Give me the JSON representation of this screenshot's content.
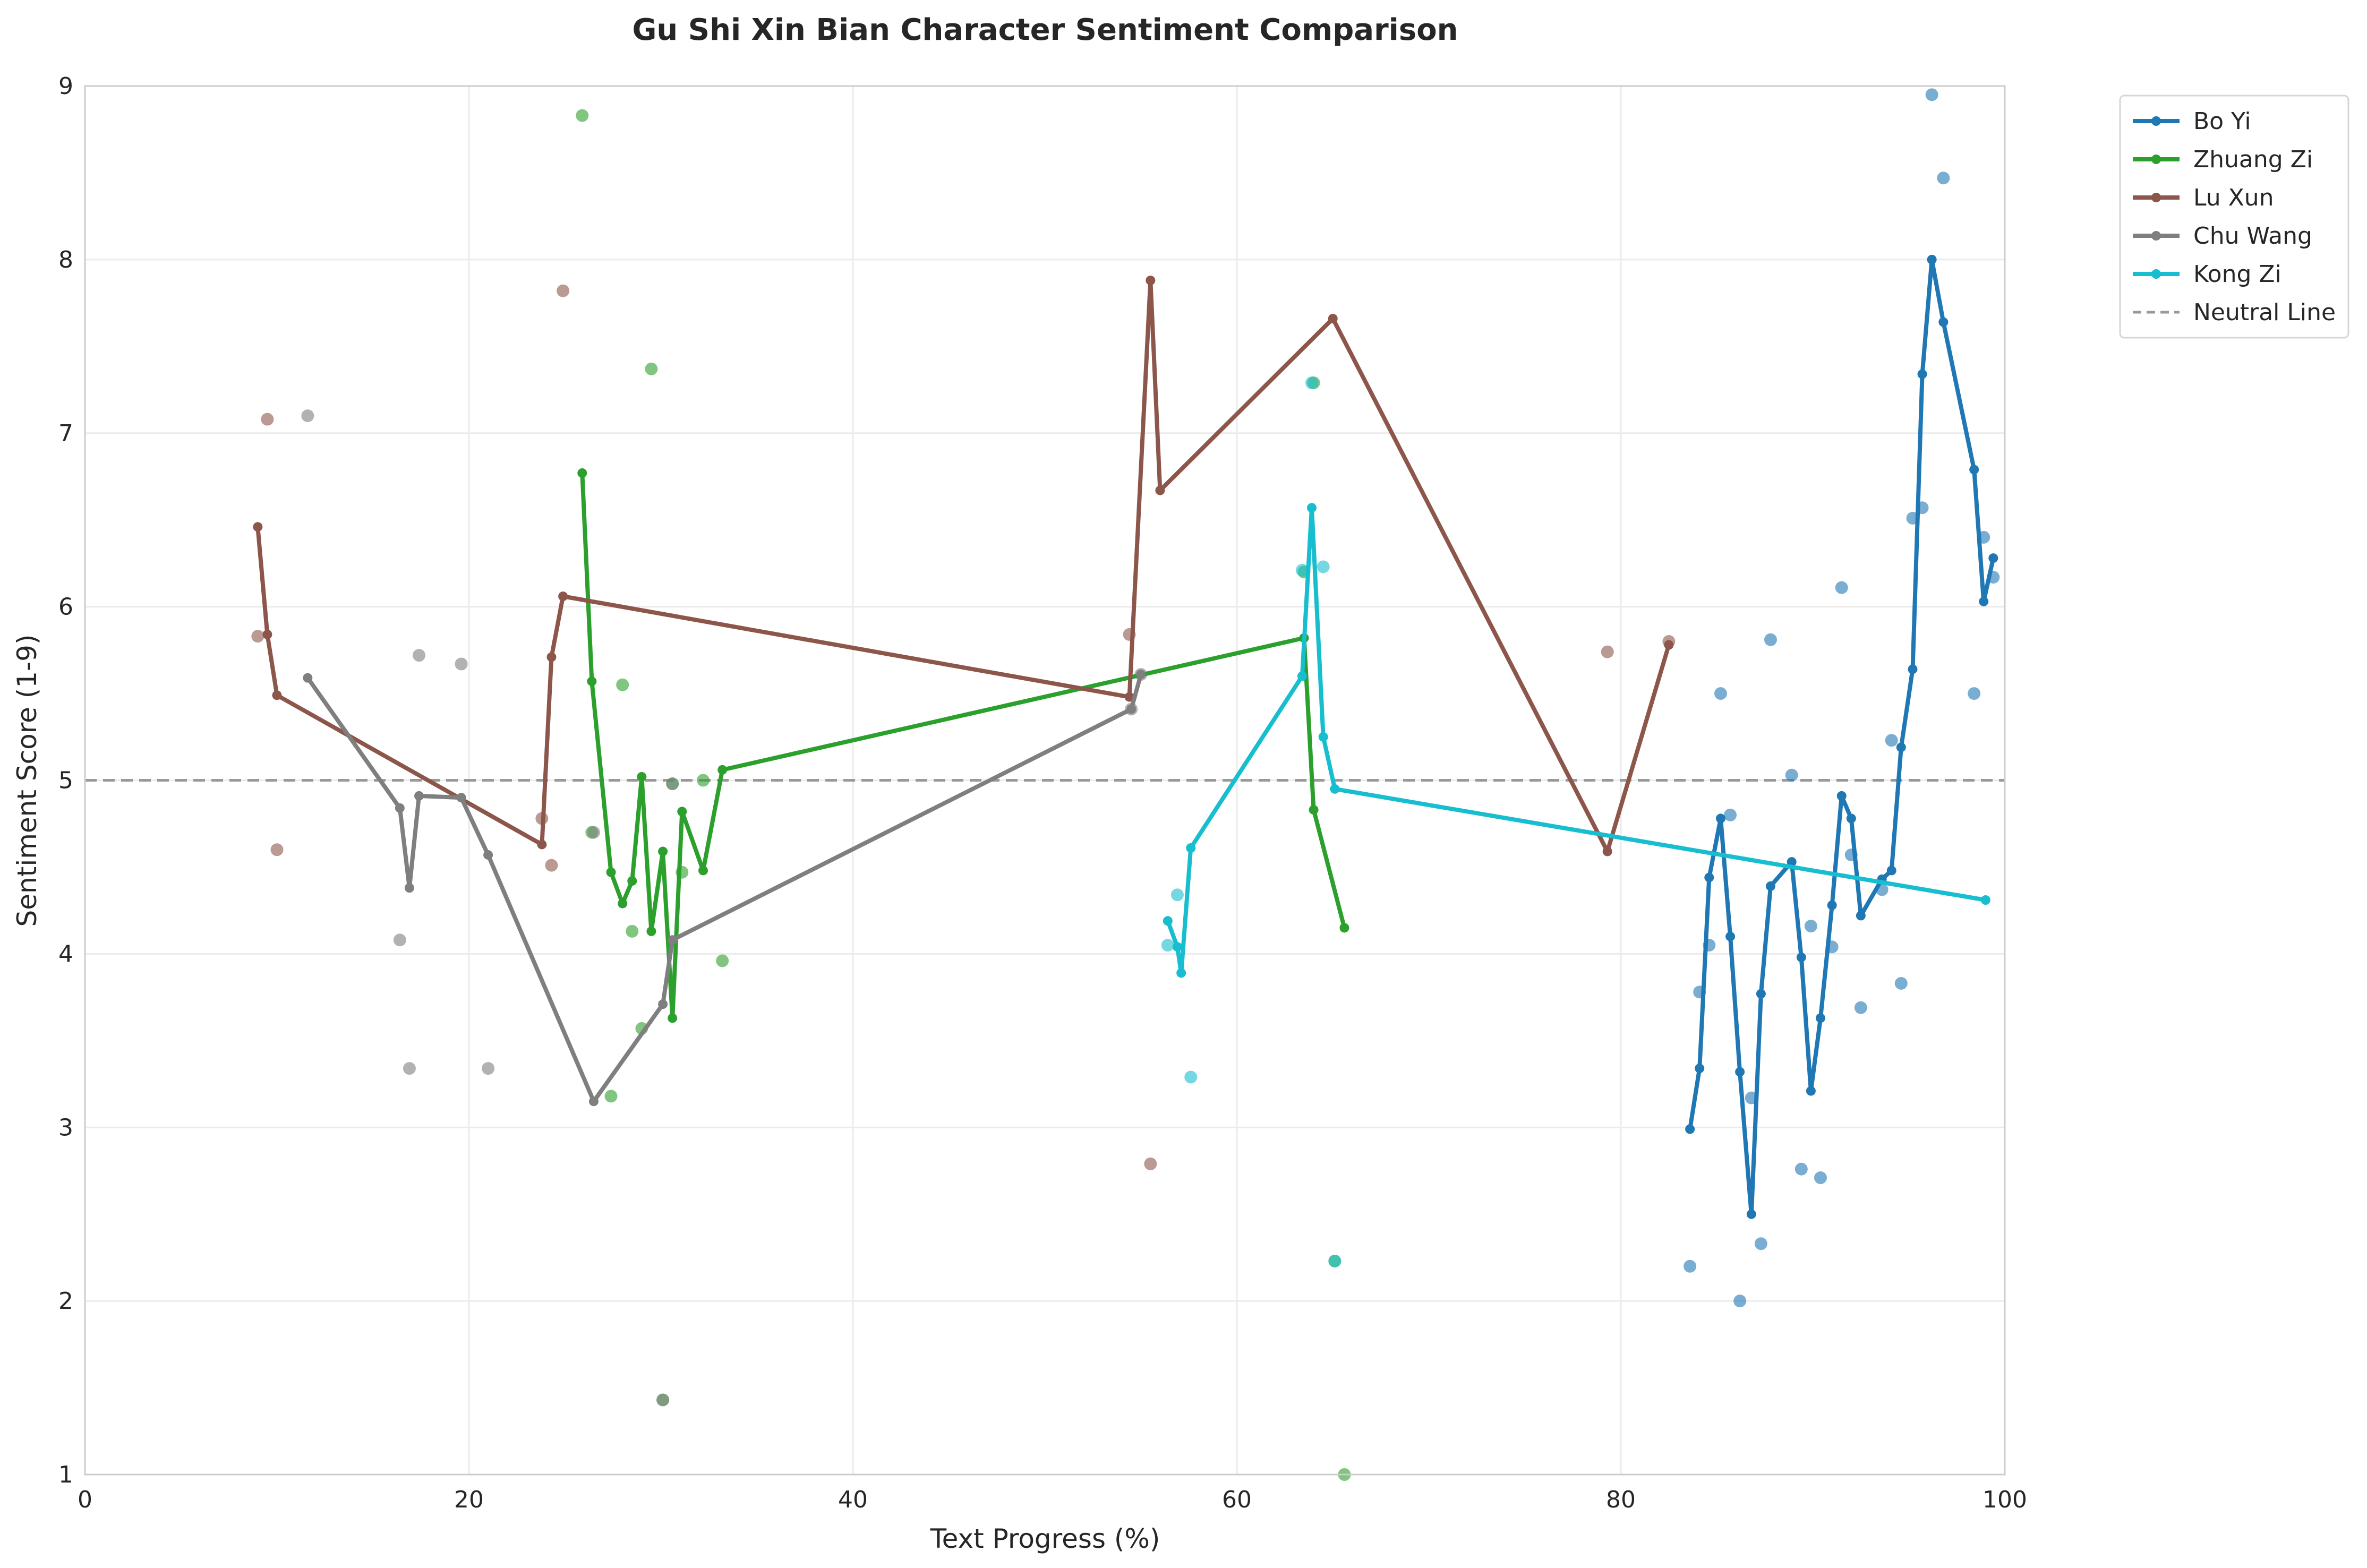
{
  "chart_data": {
    "type": "line",
    "title": "Gu Shi Xin Bian Character Sentiment Comparison",
    "xlabel": "Text Progress (%)",
    "ylabel": "Sentiment Score (1-9)",
    "xlim": [
      0,
      100
    ],
    "ylim": [
      1,
      9
    ],
    "xticks": [
      0,
      20,
      40,
      60,
      80,
      100
    ],
    "yticks": [
      1,
      2,
      3,
      4,
      5,
      6,
      7,
      8,
      9
    ],
    "grid": true,
    "legend_position": "outside-top-right",
    "reference_line": {
      "name": "Neutral Line",
      "y": 5,
      "color": "#999999",
      "style": "dashed"
    },
    "series": [
      {
        "name": "Bo Yi",
        "color": "#1f77b4",
        "line": [
          [
            83.6,
            2.99
          ],
          [
            84.1,
            3.34
          ],
          [
            84.6,
            4.44
          ],
          [
            85.2,
            4.78
          ],
          [
            85.7,
            4.1
          ],
          [
            86.2,
            3.32
          ],
          [
            86.8,
            2.5
          ],
          [
            87.3,
            3.77
          ],
          [
            87.8,
            4.39
          ],
          [
            88.9,
            4.53
          ],
          [
            89.4,
            3.98
          ],
          [
            89.9,
            3.21
          ],
          [
            90.4,
            3.63
          ],
          [
            91.0,
            4.28
          ],
          [
            91.5,
            4.91
          ],
          [
            92.0,
            4.78
          ],
          [
            92.5,
            4.22
          ],
          [
            93.6,
            4.43
          ],
          [
            94.1,
            4.48
          ],
          [
            94.6,
            5.19
          ],
          [
            95.2,
            5.64
          ],
          [
            95.7,
            7.34
          ],
          [
            96.2,
            8.0
          ],
          [
            96.8,
            7.64
          ],
          [
            98.4,
            6.79
          ],
          [
            98.9,
            6.03
          ],
          [
            99.4,
            6.28
          ]
        ],
        "scatter": [
          [
            83.6,
            2.2
          ],
          [
            84.1,
            3.78
          ],
          [
            84.6,
            4.05
          ],
          [
            85.2,
            5.5
          ],
          [
            85.7,
            4.8
          ],
          [
            86.2,
            2.0
          ],
          [
            86.8,
            3.17
          ],
          [
            87.3,
            2.33
          ],
          [
            87.8,
            5.81
          ],
          [
            88.9,
            5.03
          ],
          [
            89.4,
            2.76
          ],
          [
            89.9,
            4.16
          ],
          [
            90.4,
            2.71
          ],
          [
            91.0,
            4.04
          ],
          [
            91.5,
            6.11
          ],
          [
            92.0,
            4.57
          ],
          [
            92.5,
            3.69
          ],
          [
            93.6,
            4.37
          ],
          [
            94.1,
            5.23
          ],
          [
            94.6,
            3.83
          ],
          [
            95.2,
            6.51
          ],
          [
            95.7,
            6.57
          ],
          [
            96.2,
            8.95
          ],
          [
            96.8,
            8.47
          ],
          [
            98.4,
            5.5
          ],
          [
            98.9,
            6.4
          ],
          [
            99.4,
            6.17
          ]
        ]
      },
      {
        "name": "Zhuang Zi",
        "color": "#2ca02c",
        "line": [
          [
            25.9,
            6.77
          ],
          [
            26.4,
            5.57
          ],
          [
            27.4,
            4.47
          ],
          [
            28.0,
            4.29
          ],
          [
            28.5,
            4.42
          ],
          [
            29.0,
            5.02
          ],
          [
            29.5,
            4.13
          ],
          [
            30.1,
            4.59
          ],
          [
            30.6,
            3.63
          ],
          [
            31.1,
            4.82
          ],
          [
            32.2,
            4.48
          ],
          [
            33.2,
            5.06
          ],
          [
            63.5,
            5.82
          ],
          [
            64.0,
            4.83
          ],
          [
            65.6,
            4.15
          ]
        ],
        "scatter": [
          [
            25.9,
            8.83
          ],
          [
            26.4,
            4.7
          ],
          [
            27.4,
            3.18
          ],
          [
            28.0,
            5.55
          ],
          [
            28.5,
            4.13
          ],
          [
            29.0,
            3.57
          ],
          [
            29.5,
            7.37
          ],
          [
            30.1,
            1.43
          ],
          [
            30.6,
            4.98
          ],
          [
            31.1,
            4.47
          ],
          [
            32.2,
            5.0
          ],
          [
            33.2,
            3.96
          ],
          [
            63.5,
            6.2
          ],
          [
            64.0,
            7.29
          ],
          [
            65.1,
            2.23
          ],
          [
            65.6,
            1.0
          ]
        ]
      },
      {
        "name": "Lu Xun",
        "color": "#8c564b",
        "line": [
          [
            9.0,
            6.46
          ],
          [
            9.5,
            5.84
          ],
          [
            10.0,
            5.49
          ],
          [
            23.8,
            4.63
          ],
          [
            24.3,
            5.71
          ],
          [
            24.9,
            6.06
          ],
          [
            54.4,
            5.48
          ],
          [
            55.5,
            7.88
          ],
          [
            56.0,
            6.67
          ],
          [
            65.0,
            7.66
          ],
          [
            79.3,
            4.59
          ],
          [
            82.5,
            5.78
          ]
        ],
        "scatter": [
          [
            9.0,
            5.83
          ],
          [
            9.5,
            7.08
          ],
          [
            10.0,
            4.6
          ],
          [
            23.8,
            4.78
          ],
          [
            24.3,
            4.51
          ],
          [
            24.9,
            7.82
          ],
          [
            54.4,
            5.84
          ],
          [
            55.5,
            2.79
          ],
          [
            79.3,
            5.74
          ],
          [
            82.5,
            5.8
          ]
        ]
      },
      {
        "name": "Chu Wang",
        "color": "#7f7f7f",
        "line": [
          [
            11.6,
            5.59
          ],
          [
            16.4,
            4.84
          ],
          [
            16.9,
            4.38
          ],
          [
            17.4,
            4.91
          ],
          [
            19.6,
            4.9
          ],
          [
            21.0,
            4.57
          ],
          [
            26.5,
            3.15
          ],
          [
            30.1,
            3.71
          ],
          [
            30.6,
            4.08
          ],
          [
            54.5,
            5.41
          ],
          [
            55.0,
            5.61
          ]
        ],
        "scatter": [
          [
            11.6,
            7.1
          ],
          [
            16.4,
            4.08
          ],
          [
            16.9,
            3.34
          ],
          [
            17.4,
            5.72
          ],
          [
            19.6,
            5.67
          ],
          [
            21.0,
            3.34
          ],
          [
            26.5,
            4.7
          ],
          [
            30.1,
            1.43
          ],
          [
            30.6,
            4.98
          ],
          [
            54.5,
            5.41
          ],
          [
            55.0,
            5.61
          ]
        ]
      },
      {
        "name": "Kong Zi",
        "color": "#17becf",
        "line": [
          [
            56.4,
            4.19
          ],
          [
            56.9,
            4.04
          ],
          [
            57.1,
            3.89
          ],
          [
            57.6,
            4.61
          ],
          [
            63.4,
            5.6
          ],
          [
            63.9,
            6.57
          ],
          [
            64.5,
            5.25
          ],
          [
            65.1,
            4.95
          ],
          [
            99.0,
            4.31
          ]
        ],
        "scatter": [
          [
            56.4,
            4.05
          ],
          [
            56.9,
            4.34
          ],
          [
            57.6,
            3.29
          ],
          [
            63.4,
            6.21
          ],
          [
            63.9,
            7.29
          ],
          [
            64.5,
            6.23
          ],
          [
            65.1,
            2.23
          ]
        ]
      }
    ]
  }
}
